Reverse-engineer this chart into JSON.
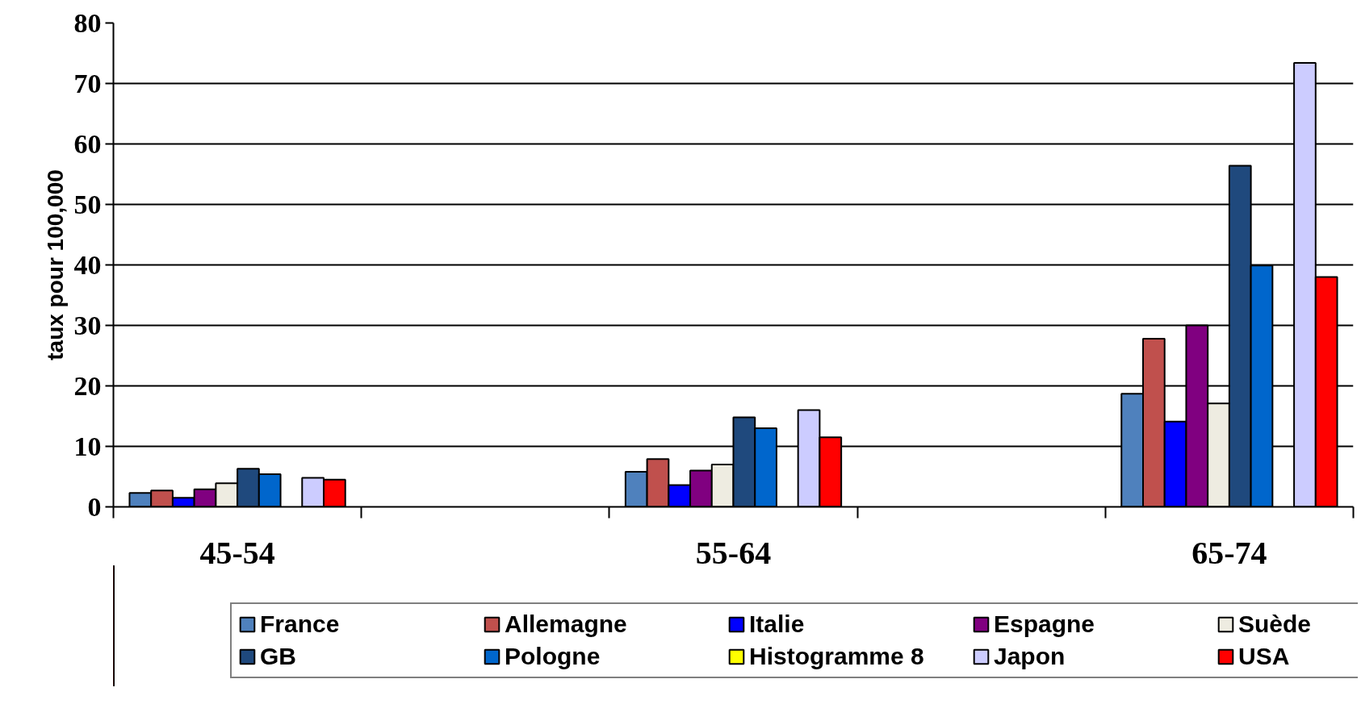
{
  "chart_data": {
    "type": "bar",
    "ylabel": "taux pour 100,000",
    "categories": [
      "45-54",
      null,
      "55-64",
      null,
      "65-74"
    ],
    "series": [
      {
        "name": "France",
        "color": "#4f81bd",
        "values": [
          2.3,
          null,
          5.8,
          null,
          18.7
        ]
      },
      {
        "name": "Allemagne",
        "color": "#c0504d",
        "values": [
          2.7,
          null,
          7.9,
          null,
          27.8
        ]
      },
      {
        "name": "Italie",
        "color": "#0000ff",
        "values": [
          1.5,
          null,
          3.6,
          null,
          14.1
        ]
      },
      {
        "name": "Espagne",
        "color": "#800080",
        "values": [
          2.9,
          null,
          6.0,
          null,
          30.0
        ]
      },
      {
        "name": "Suède",
        "color": "#eeece1",
        "values": [
          3.9,
          null,
          7.0,
          null,
          17.1
        ]
      },
      {
        "name": "GB",
        "color": "#1f497d",
        "values": [
          6.3,
          null,
          14.8,
          null,
          56.4
        ]
      },
      {
        "name": "Pologne",
        "color": "#0066cc",
        "values": [
          5.4,
          null,
          13.0,
          null,
          39.9
        ]
      },
      {
        "name": "Histogramme 8",
        "color": "#ffff00",
        "values": [
          null,
          null,
          null,
          null,
          null
        ]
      },
      {
        "name": "Japon",
        "color": "#ccccff",
        "values": [
          4.8,
          null,
          16.0,
          null,
          73.4
        ]
      },
      {
        "name": "USA",
        "color": "#ff0000",
        "values": [
          4.5,
          null,
          11.5,
          null,
          38.0
        ]
      }
    ],
    "ylim": [
      0,
      80
    ],
    "yticks": [
      0,
      10,
      20,
      30,
      40,
      50,
      60,
      70,
      80
    ],
    "grid": "y",
    "legend": "bottom"
  }
}
